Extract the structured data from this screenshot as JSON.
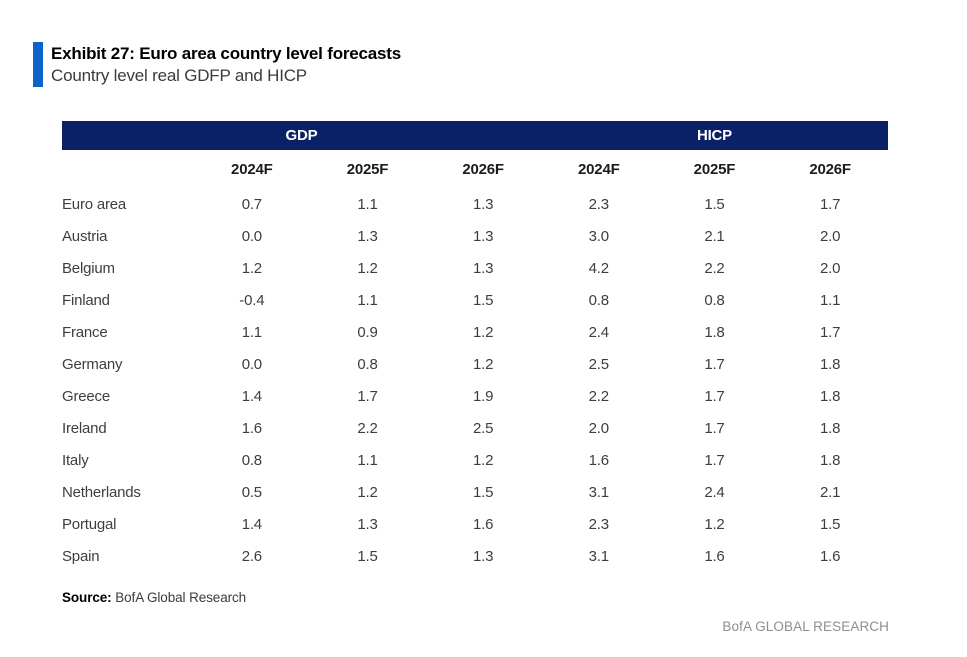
{
  "exhibit": {
    "title": "Exhibit 27: Euro area country level forecasts",
    "subtitle": "Country level real GDFP and HICP"
  },
  "table": {
    "group_headers": [
      {
        "label": "GDP"
      },
      {
        "label": "HICP"
      }
    ],
    "year_headers": [
      "2024F",
      "2025F",
      "2026F",
      "2024F",
      "2025F",
      "2026F"
    ],
    "rows": [
      {
        "country": "Euro area",
        "values": [
          "0.7",
          "1.1",
          "1.3",
          "2.3",
          "1.5",
          "1.7"
        ]
      },
      {
        "country": "Austria",
        "values": [
          "0.0",
          "1.3",
          "1.3",
          "3.0",
          "2.1",
          "2.0"
        ]
      },
      {
        "country": "Belgium",
        "values": [
          "1.2",
          "1.2",
          "1.3",
          "4.2",
          "2.2",
          "2.0"
        ]
      },
      {
        "country": "Finland",
        "values": [
          "-0.4",
          "1.1",
          "1.5",
          "0.8",
          "0.8",
          "1.1"
        ]
      },
      {
        "country": "France",
        "values": [
          "1.1",
          "0.9",
          "1.2",
          "2.4",
          "1.8",
          "1.7"
        ]
      },
      {
        "country": "Germany",
        "values": [
          "0.0",
          "0.8",
          "1.2",
          "2.5",
          "1.7",
          "1.8"
        ]
      },
      {
        "country": "Greece",
        "values": [
          "1.4",
          "1.7",
          "1.9",
          "2.2",
          "1.7",
          "1.8"
        ]
      },
      {
        "country": "Ireland",
        "values": [
          "1.6",
          "2.2",
          "2.5",
          "2.0",
          "1.7",
          "1.8"
        ]
      },
      {
        "country": "Italy",
        "values": [
          "0.8",
          "1.1",
          "1.2",
          "1.6",
          "1.7",
          "1.8"
        ]
      },
      {
        "country": "Netherlands",
        "values": [
          "0.5",
          "1.2",
          "1.5",
          "3.1",
          "2.4",
          "2.1"
        ]
      },
      {
        "country": "Portugal",
        "values": [
          "1.4",
          "1.3",
          "1.6",
          "2.3",
          "1.2",
          "1.5"
        ]
      },
      {
        "country": "Spain",
        "values": [
          "2.6",
          "1.5",
          "1.3",
          "3.1",
          "1.6",
          "1.6"
        ]
      }
    ]
  },
  "source": {
    "label": "Source:",
    "text": "BofA Global Research"
  },
  "footer": {
    "brand": "BofA GLOBAL RESEARCH"
  },
  "colors": {
    "header_navy": "#0a2167",
    "accent_blue": "#0d64c8",
    "body_text": "#3e3e3e",
    "footer_gray": "#8e8e8e"
  }
}
